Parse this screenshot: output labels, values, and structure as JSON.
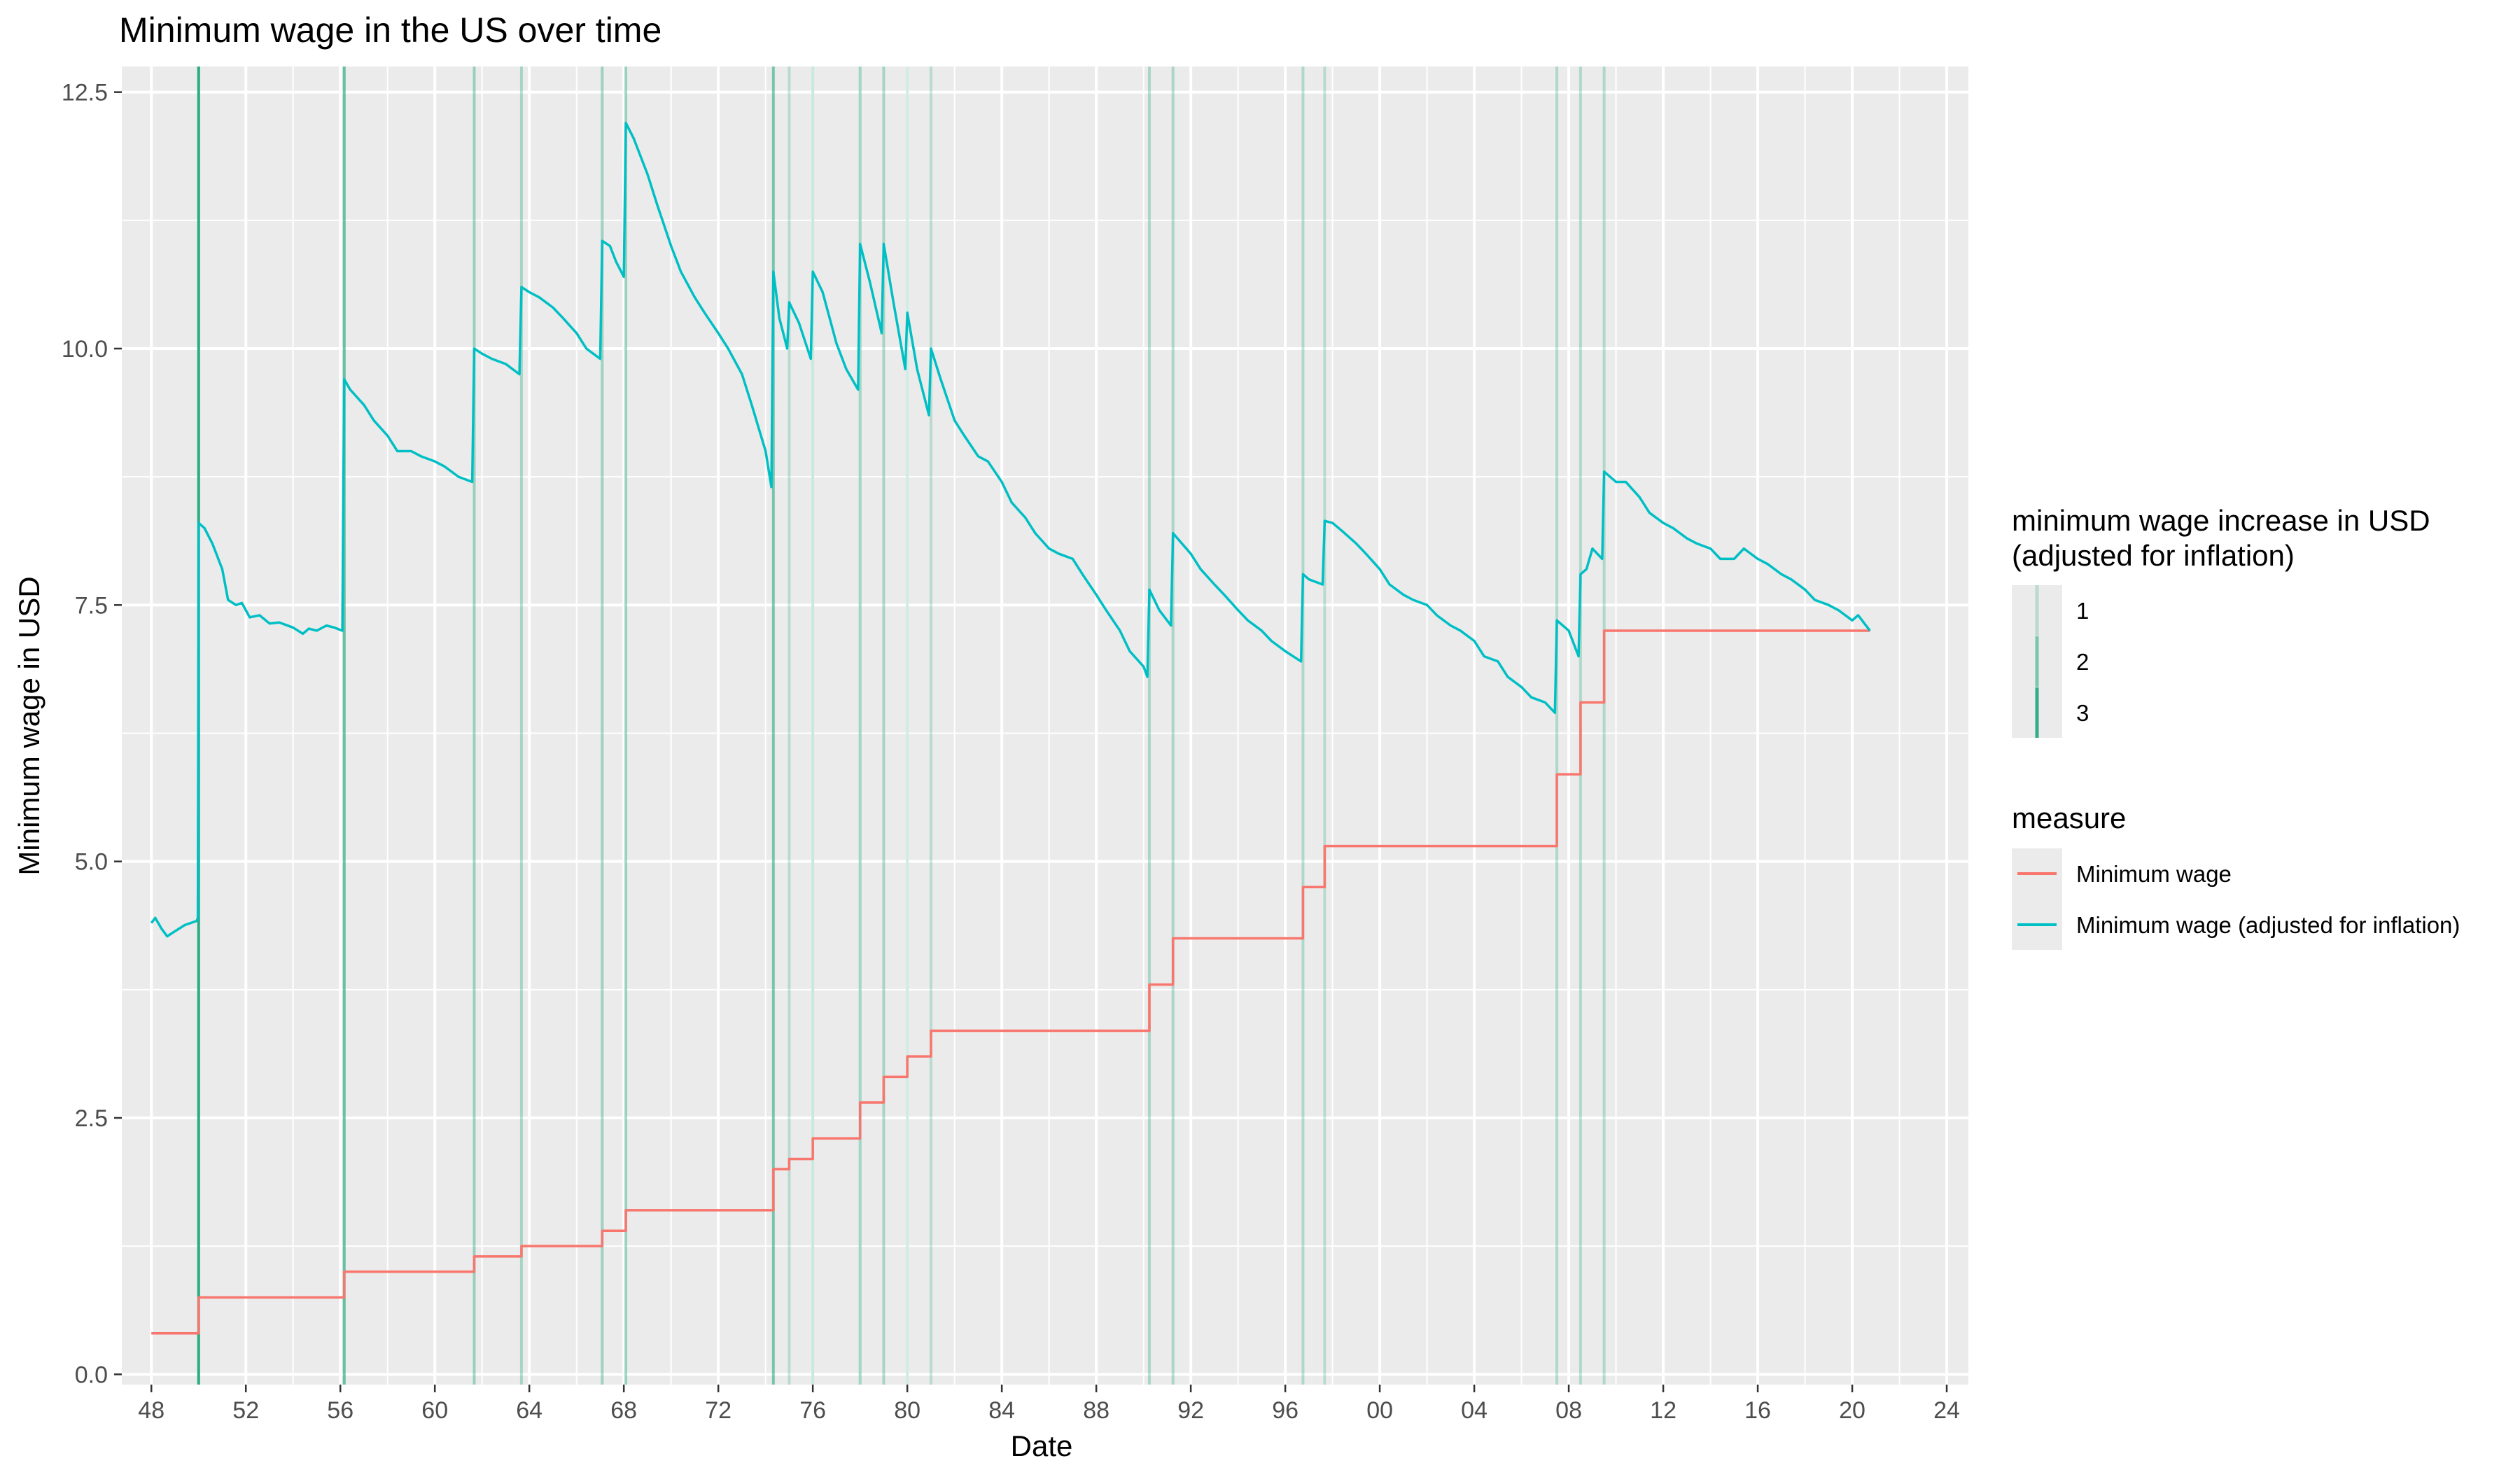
{
  "chart_data": {
    "type": "line",
    "title": "Minimum wage in the US over time",
    "xlabel": "Date",
    "ylabel": "Minimum wage in USD",
    "x_domain": [
      "1946-10-01",
      "2024-12-01"
    ],
    "ylim": [
      -0.1,
      12.75
    ],
    "x_ticks": [
      {
        "date": "1948-01-01",
        "label": "48"
      },
      {
        "date": "1952-01-01",
        "label": "52"
      },
      {
        "date": "1956-01-01",
        "label": "56"
      },
      {
        "date": "1960-01-01",
        "label": "60"
      },
      {
        "date": "1964-01-01",
        "label": "64"
      },
      {
        "date": "1968-01-01",
        "label": "68"
      },
      {
        "date": "1972-01-01",
        "label": "72"
      },
      {
        "date": "1976-01-01",
        "label": "76"
      },
      {
        "date": "1980-01-01",
        "label": "80"
      },
      {
        "date": "1984-01-01",
        "label": "84"
      },
      {
        "date": "1988-01-01",
        "label": "88"
      },
      {
        "date": "1992-01-01",
        "label": "92"
      },
      {
        "date": "1996-01-01",
        "label": "96"
      },
      {
        "date": "2000-01-01",
        "label": "00"
      },
      {
        "date": "2004-01-01",
        "label": "04"
      },
      {
        "date": "2008-01-01",
        "label": "08"
      },
      {
        "date": "2012-01-01",
        "label": "12"
      },
      {
        "date": "2016-01-01",
        "label": "16"
      },
      {
        "date": "2020-01-01",
        "label": "20"
      },
      {
        "date": "2024-01-01",
        "label": "24"
      }
    ],
    "y_ticks": [
      {
        "value": 0,
        "label": "0.0"
      },
      {
        "value": 2.5,
        "label": "2.5"
      },
      {
        "value": 5,
        "label": "5.0"
      },
      {
        "value": 7.5,
        "label": "7.5"
      },
      {
        "value": 10,
        "label": "10.0"
      },
      {
        "value": 12.5,
        "label": "12.5"
      }
    ],
    "grid": true,
    "legend_position": "right",
    "increase_legend": {
      "title_lines": [
        "minimum wage increase in USD",
        "(adjusted for inflation)"
      ],
      "entries": [
        {
          "label": "1",
          "alpha": 0.25
        },
        {
          "label": "2",
          "alpha": 0.55
        },
        {
          "label": "3",
          "alpha": 0.9
        }
      ]
    },
    "vlines": [
      {
        "date": "1950-01-01",
        "increase": 3.9
      },
      {
        "date": "1956-03-01",
        "increase": 2.4
      },
      {
        "date": "1961-09-01",
        "increase": 1.3
      },
      {
        "date": "1963-09-01",
        "increase": 1.0
      },
      {
        "date": "1967-02-01",
        "increase": 1.2
      },
      {
        "date": "1968-02-01",
        "increase": 1.3
      },
      {
        "date": "1974-05-01",
        "increase": 2.0
      },
      {
        "date": "1975-01-01",
        "increase": 0.6
      },
      {
        "date": "1976-01-01",
        "increase": 0.6
      },
      {
        "date": "1978-01-01",
        "increase": 1.3
      },
      {
        "date": "1979-01-01",
        "increase": 1.0
      },
      {
        "date": "1980-01-01",
        "increase": 0.4
      },
      {
        "date": "1981-01-01",
        "increase": 0.6
      },
      {
        "date": "1990-04-01",
        "increase": 0.9
      },
      {
        "date": "1991-04-01",
        "increase": 0.9
      },
      {
        "date": "1996-10-01",
        "increase": 0.8
      },
      {
        "date": "1997-09-01",
        "increase": 0.6
      },
      {
        "date": "2007-07-01",
        "increase": 0.8
      },
      {
        "date": "2008-07-01",
        "increase": 0.8
      },
      {
        "date": "2009-07-01",
        "increase": 0.8
      }
    ],
    "series": [
      {
        "name": "Minimum wage",
        "color": "#F8766D",
        "step": true,
        "points": [
          [
            "1948-01-01",
            0.4
          ],
          [
            "1950-01-01",
            0.75
          ],
          [
            "1956-03-01",
            1.0
          ],
          [
            "1961-09-01",
            1.15
          ],
          [
            "1963-09-01",
            1.25
          ],
          [
            "1967-02-01",
            1.4
          ],
          [
            "1968-02-01",
            1.6
          ],
          [
            "1974-05-01",
            2.0
          ],
          [
            "1975-01-01",
            2.1
          ],
          [
            "1976-01-01",
            2.3
          ],
          [
            "1978-01-01",
            2.65
          ],
          [
            "1979-01-01",
            2.9
          ],
          [
            "1980-01-01",
            3.1
          ],
          [
            "1981-01-01",
            3.35
          ],
          [
            "1990-04-01",
            3.8
          ],
          [
            "1991-04-01",
            4.25
          ],
          [
            "1996-10-01",
            4.75
          ],
          [
            "1997-09-01",
            5.15
          ],
          [
            "2007-07-01",
            5.85
          ],
          [
            "2008-07-01",
            6.55
          ],
          [
            "2009-07-01",
            7.25
          ],
          [
            "2020-10-01",
            7.25
          ]
        ]
      },
      {
        "name": "Minimum wage (adjusted for inflation)",
        "color": "#00BFC4",
        "step": false,
        "points": [
          [
            "1948-01-01",
            4.4
          ],
          [
            "1948-03-01",
            4.45
          ],
          [
            "1948-06-01",
            4.35
          ],
          [
            "1948-09-01",
            4.27
          ],
          [
            "1949-01-01",
            4.32
          ],
          [
            "1949-06-01",
            4.38
          ],
          [
            "1949-12-01",
            4.42
          ],
          [
            "1949-12-20",
            4.45
          ],
          [
            "1950-01-01",
            8.3
          ],
          [
            "1950-04-01",
            8.25
          ],
          [
            "1950-08-01",
            8.1
          ],
          [
            "1951-01-01",
            7.85
          ],
          [
            "1951-04-01",
            7.55
          ],
          [
            "1951-08-01",
            7.5
          ],
          [
            "1951-11-01",
            7.52
          ],
          [
            "1952-03-01",
            7.38
          ],
          [
            "1952-08-01",
            7.4
          ],
          [
            "1953-01-01",
            7.32
          ],
          [
            "1953-06-01",
            7.33
          ],
          [
            "1954-01-01",
            7.28
          ],
          [
            "1954-06-01",
            7.22
          ],
          [
            "1954-09-01",
            7.27
          ],
          [
            "1955-01-01",
            7.25
          ],
          [
            "1955-06-01",
            7.3
          ],
          [
            "1955-10-01",
            7.28
          ],
          [
            "1956-02-01",
            7.25
          ],
          [
            "1956-03-01",
            9.7
          ],
          [
            "1956-06-01",
            9.6
          ],
          [
            "1957-01-01",
            9.45
          ],
          [
            "1957-06-01",
            9.3
          ],
          [
            "1958-01-01",
            9.15
          ],
          [
            "1958-06-01",
            9.0
          ],
          [
            "1959-01-01",
            9.0
          ],
          [
            "1959-06-01",
            8.95
          ],
          [
            "1960-01-01",
            8.9
          ],
          [
            "1960-06-01",
            8.85
          ],
          [
            "1961-01-01",
            8.75
          ],
          [
            "1961-08-01",
            8.7
          ],
          [
            "1961-09-01",
            10.0
          ],
          [
            "1962-01-01",
            9.95
          ],
          [
            "1962-06-01",
            9.9
          ],
          [
            "1963-01-01",
            9.85
          ],
          [
            "1963-08-01",
            9.75
          ],
          [
            "1963-09-01",
            10.6
          ],
          [
            "1964-01-01",
            10.55
          ],
          [
            "1964-06-01",
            10.5
          ],
          [
            "1965-01-01",
            10.4
          ],
          [
            "1965-06-01",
            10.3
          ],
          [
            "1966-01-01",
            10.15
          ],
          [
            "1966-06-01",
            10.0
          ],
          [
            "1967-01-01",
            9.9
          ],
          [
            "1967-02-01",
            11.05
          ],
          [
            "1967-06-01",
            11.0
          ],
          [
            "1967-09-01",
            10.85
          ],
          [
            "1968-01-01",
            10.7
          ],
          [
            "1968-02-01",
            12.2
          ],
          [
            "1968-06-01",
            12.05
          ],
          [
            "1969-01-01",
            11.7
          ],
          [
            "1969-06-01",
            11.4
          ],
          [
            "1970-01-01",
            11.0
          ],
          [
            "1970-06-01",
            10.75
          ],
          [
            "1971-01-01",
            10.5
          ],
          [
            "1971-06-01",
            10.35
          ],
          [
            "1972-01-01",
            10.15
          ],
          [
            "1972-06-01",
            10.0
          ],
          [
            "1973-01-01",
            9.75
          ],
          [
            "1973-06-01",
            9.45
          ],
          [
            "1974-01-01",
            9.0
          ],
          [
            "1974-04-01",
            8.65
          ],
          [
            "1974-05-01",
            10.75
          ],
          [
            "1974-08-01",
            10.3
          ],
          [
            "1974-12-01",
            10.0
          ],
          [
            "1975-01-01",
            10.45
          ],
          [
            "1975-06-01",
            10.25
          ],
          [
            "1975-12-01",
            9.9
          ],
          [
            "1976-01-01",
            10.75
          ],
          [
            "1976-06-01",
            10.55
          ],
          [
            "1977-01-01",
            10.05
          ],
          [
            "1977-06-01",
            9.8
          ],
          [
            "1977-12-01",
            9.6
          ],
          [
            "1978-01-01",
            11.02
          ],
          [
            "1978-06-01",
            10.65
          ],
          [
            "1978-12-01",
            10.15
          ],
          [
            "1979-01-01",
            11.02
          ],
          [
            "1979-06-01",
            10.45
          ],
          [
            "1979-12-01",
            9.8
          ],
          [
            "1980-01-01",
            10.35
          ],
          [
            "1980-06-01",
            9.8
          ],
          [
            "1980-12-01",
            9.35
          ],
          [
            "1981-01-01",
            10.0
          ],
          [
            "1981-06-01",
            9.7
          ],
          [
            "1982-01-01",
            9.3
          ],
          [
            "1982-06-01",
            9.15
          ],
          [
            "1983-01-01",
            8.95
          ],
          [
            "1983-06-01",
            8.9
          ],
          [
            "1984-01-01",
            8.7
          ],
          [
            "1984-06-01",
            8.5
          ],
          [
            "1985-01-01",
            8.35
          ],
          [
            "1985-06-01",
            8.2
          ],
          [
            "1986-01-01",
            8.05
          ],
          [
            "1986-06-01",
            8.0
          ],
          [
            "1987-01-01",
            7.95
          ],
          [
            "1987-06-01",
            7.8
          ],
          [
            "1988-01-01",
            7.6
          ],
          [
            "1988-06-01",
            7.45
          ],
          [
            "1989-01-01",
            7.25
          ],
          [
            "1989-06-01",
            7.05
          ],
          [
            "1990-01-01",
            6.9
          ],
          [
            "1990-03-01",
            6.8
          ],
          [
            "1990-04-01",
            7.65
          ],
          [
            "1990-09-01",
            7.45
          ],
          [
            "1991-03-01",
            7.3
          ],
          [
            "1991-04-01",
            8.2
          ],
          [
            "1992-01-01",
            8.0
          ],
          [
            "1992-06-01",
            7.85
          ],
          [
            "1993-01-01",
            7.7
          ],
          [
            "1993-06-01",
            7.6
          ],
          [
            "1994-01-01",
            7.45
          ],
          [
            "1994-06-01",
            7.35
          ],
          [
            "1995-01-01",
            7.25
          ],
          [
            "1995-06-01",
            7.15
          ],
          [
            "1996-01-01",
            7.05
          ],
          [
            "1996-09-01",
            6.95
          ],
          [
            "1996-10-01",
            7.8
          ],
          [
            "1997-01-01",
            7.75
          ],
          [
            "1997-08-01",
            7.7
          ],
          [
            "1997-09-01",
            8.32
          ],
          [
            "1998-01-01",
            8.3
          ],
          [
            "1998-06-01",
            8.22
          ],
          [
            "1999-01-01",
            8.1
          ],
          [
            "1999-06-01",
            8.0
          ],
          [
            "2000-01-01",
            7.85
          ],
          [
            "2000-06-01",
            7.7
          ],
          [
            "2001-01-01",
            7.6
          ],
          [
            "2001-06-01",
            7.55
          ],
          [
            "2002-01-01",
            7.5
          ],
          [
            "2002-06-01",
            7.4
          ],
          [
            "2003-01-01",
            7.3
          ],
          [
            "2003-06-01",
            7.25
          ],
          [
            "2004-01-01",
            7.15
          ],
          [
            "2004-06-01",
            7.0
          ],
          [
            "2005-01-01",
            6.95
          ],
          [
            "2005-06-01",
            6.8
          ],
          [
            "2006-01-01",
            6.7
          ],
          [
            "2006-06-01",
            6.6
          ],
          [
            "2007-01-01",
            6.55
          ],
          [
            "2007-06-01",
            6.45
          ],
          [
            "2007-07-01",
            7.35
          ],
          [
            "2008-01-01",
            7.25
          ],
          [
            "2008-06-01",
            7.0
          ],
          [
            "2008-07-01",
            7.8
          ],
          [
            "2008-10-01",
            7.85
          ],
          [
            "2009-01-01",
            8.05
          ],
          [
            "2009-06-01",
            7.95
          ],
          [
            "2009-07-01",
            8.8
          ],
          [
            "2010-01-01",
            8.7
          ],
          [
            "2010-06-01",
            8.7
          ],
          [
            "2011-01-01",
            8.55
          ],
          [
            "2011-06-01",
            8.4
          ],
          [
            "2012-01-01",
            8.3
          ],
          [
            "2012-06-01",
            8.25
          ],
          [
            "2013-01-01",
            8.15
          ],
          [
            "2013-06-01",
            8.1
          ],
          [
            "2014-01-01",
            8.05
          ],
          [
            "2014-06-01",
            7.95
          ],
          [
            "2015-01-01",
            7.95
          ],
          [
            "2015-06-01",
            8.05
          ],
          [
            "2016-01-01",
            7.95
          ],
          [
            "2016-06-01",
            7.9
          ],
          [
            "2017-01-01",
            7.8
          ],
          [
            "2017-06-01",
            7.75
          ],
          [
            "2018-01-01",
            7.65
          ],
          [
            "2018-06-01",
            7.55
          ],
          [
            "2019-01-01",
            7.5
          ],
          [
            "2019-06-01",
            7.45
          ],
          [
            "2020-01-01",
            7.35
          ],
          [
            "2020-04-01",
            7.4
          ],
          [
            "2020-10-01",
            7.25
          ]
        ]
      }
    ],
    "measure_legend": {
      "title": "measure",
      "entries": [
        {
          "label": "Minimum wage",
          "color": "#F8766D"
        },
        {
          "label": "Minimum wage (adjusted for inflation)",
          "color": "#00BFC4"
        }
      ]
    },
    "colors": {
      "panel_bg": "#EBEBEB",
      "grid": "#FFFFFF",
      "vline": "#1FA77C",
      "tick_text": "#4D4D4D",
      "tick_mark": "#333333"
    }
  }
}
